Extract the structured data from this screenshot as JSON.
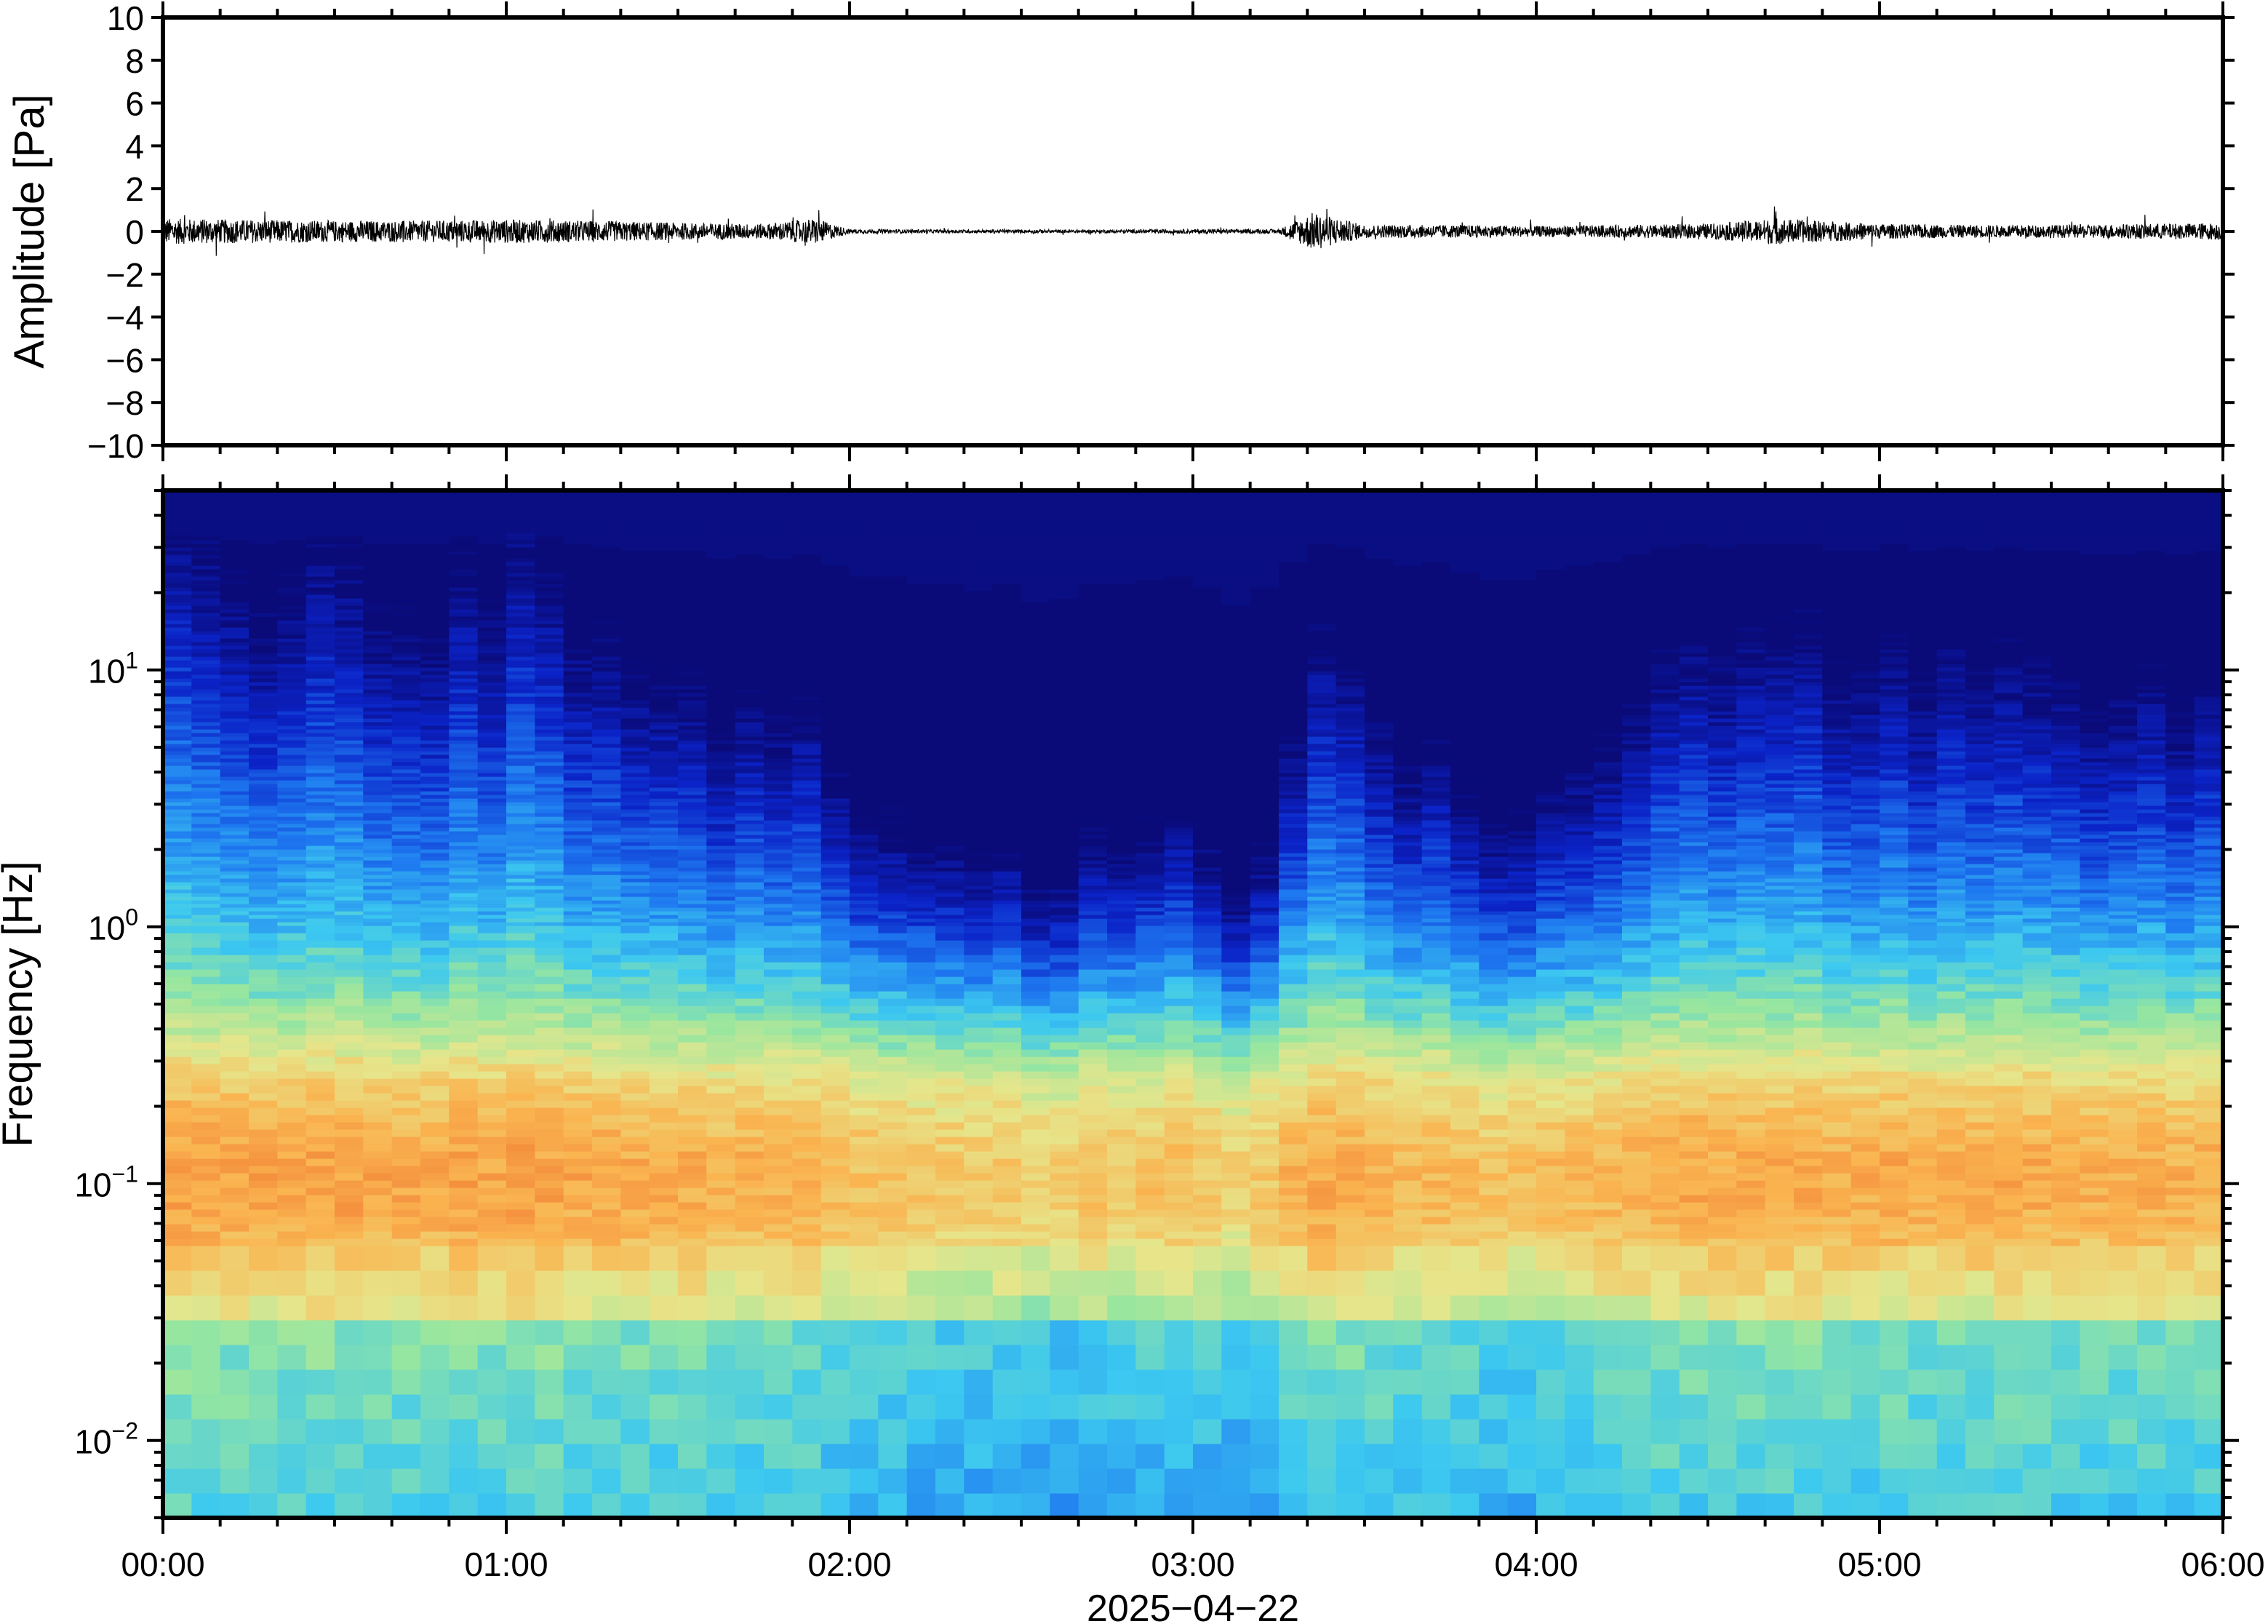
{
  "chart_data": [
    {
      "type": "line",
      "panel": "waveform",
      "ylabel": "Amplitude [Pa]",
      "ylim": [
        -10,
        10
      ],
      "y_ticks": [
        10,
        8,
        6,
        4,
        2,
        0,
        -2,
        -4,
        -6,
        -8,
        -10
      ],
      "y_tick_labels": [
        "10",
        "8",
        "6",
        "4",
        "2",
        "0",
        "−2",
        "−4",
        "−6",
        "−8",
        "−10"
      ],
      "xlim": [
        "00:00",
        "06:00"
      ],
      "series": [
        {
          "color": "#000000",
          "x_hours": [
            0,
            0.25,
            0.5,
            0.75,
            1.0,
            1.25,
            1.5,
            1.75,
            1.9,
            2.0,
            2.25,
            2.5,
            2.75,
            3.0,
            3.25,
            3.35,
            3.5,
            3.75,
            4.0,
            4.25,
            4.5,
            4.7,
            5.0,
            5.25,
            5.5,
            5.75,
            6.0
          ],
          "envelope": [
            0.6,
            0.55,
            0.5,
            0.5,
            0.55,
            0.5,
            0.4,
            0.35,
            0.6,
            0.1,
            0.08,
            0.08,
            0.08,
            0.1,
            0.1,
            0.9,
            0.3,
            0.3,
            0.25,
            0.3,
            0.35,
            0.6,
            0.35,
            0.3,
            0.3,
            0.35,
            0.4
          ]
        }
      ]
    },
    {
      "type": "heatmap",
      "panel": "spectrogram",
      "ylabel": "Frequency [Hz]",
      "xlabel": "2025−04−22",
      "y_scale": "log",
      "ylim": [
        0.005,
        50
      ],
      "y_ticks": [
        0.01,
        0.1,
        1,
        10
      ],
      "y_tick_labels": [
        {
          "base": "10",
          "exp": "−2"
        },
        {
          "base": "10",
          "exp": "−1"
        },
        {
          "base": "10",
          "exp": "0"
        },
        {
          "base": "10",
          "exp": "1"
        }
      ],
      "x_ticks": [
        "00:00",
        "01:00",
        "02:00",
        "03:00",
        "04:00",
        "05:00",
        "06:00"
      ],
      "colormap": [
        "#0a0a78",
        "#0b23c8",
        "#1e78f0",
        "#3cc8f0",
        "#96e6a0",
        "#e6e68c",
        "#fab450",
        "#f07832"
      ],
      "column_hours": [
        0,
        0.25,
        0.5,
        0.75,
        1.0,
        1.25,
        1.5,
        1.75,
        1.9,
        2.0,
        2.25,
        2.5,
        2.58,
        2.75,
        3.0,
        3.08,
        3.2,
        3.35,
        3.5,
        3.75,
        3.9,
        4.0,
        4.25,
        4.5,
        4.75,
        5.0,
        5.25,
        5.5,
        5.75,
        6.0
      ],
      "column_activity": [
        0.9,
        0.85,
        0.85,
        0.85,
        0.88,
        0.85,
        0.7,
        0.65,
        0.75,
        0.4,
        0.35,
        0.3,
        0.15,
        0.4,
        0.5,
        0.1,
        0.3,
        0.8,
        0.7,
        0.55,
        0.35,
        0.55,
        0.65,
        0.8,
        0.85,
        0.75,
        0.75,
        0.7,
        0.7,
        0.75
      ],
      "notes_visible": "Energy peaks near 0.05–0.2 Hz; quieter period 02:00–03:30"
    }
  ],
  "figure": {
    "date_label": "2025−04−22"
  }
}
